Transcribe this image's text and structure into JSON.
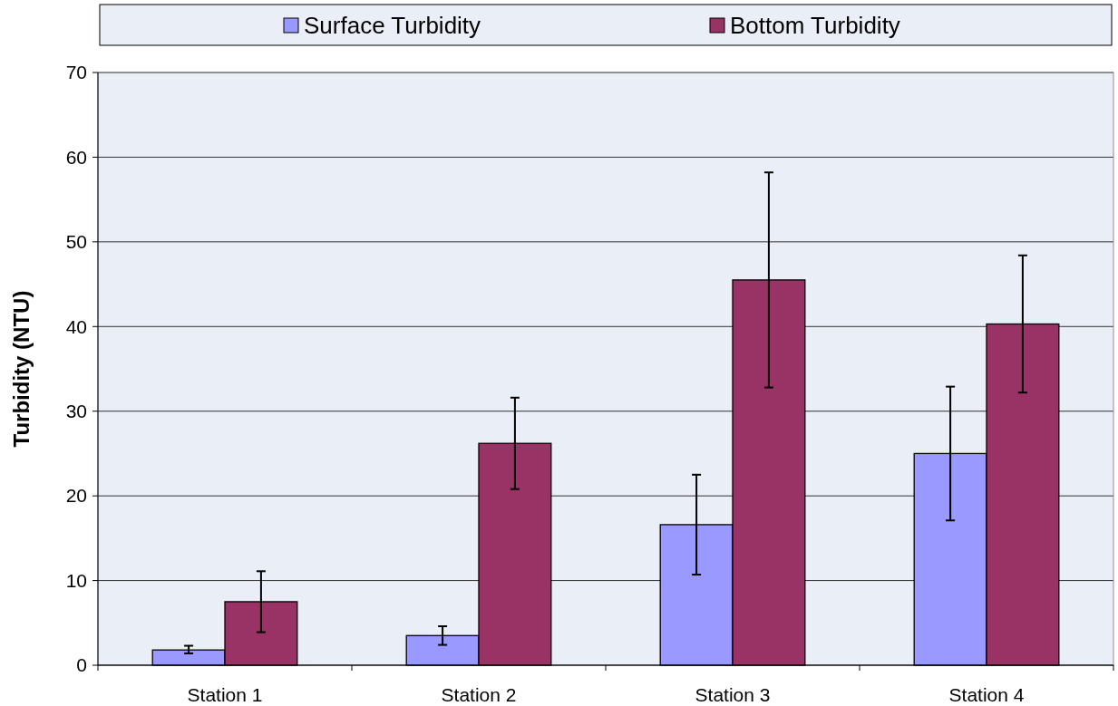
{
  "chart_data": {
    "type": "bar",
    "ylabel": "Turbidity (NTU)",
    "categories": [
      "Station 1",
      "Station 2",
      "Station 3",
      "Station 4"
    ],
    "series": [
      {
        "name": "Surface Turbidity",
        "color": "#9999ff",
        "values": [
          1.8,
          3.5,
          16.6,
          25.0
        ],
        "errors": [
          [
            1.4,
            2.3
          ],
          [
            2.4,
            4.6
          ],
          [
            10.7,
            22.5
          ],
          [
            17.1,
            32.9
          ]
        ]
      },
      {
        "name": "Bottom Turbidity",
        "color": "#993366",
        "values": [
          7.5,
          26.2,
          45.5,
          40.3
        ],
        "errors": [
          [
            3.9,
            11.1
          ],
          [
            20.8,
            31.6
          ],
          [
            32.8,
            58.2
          ],
          [
            32.2,
            48.4
          ]
        ]
      }
    ],
    "ylim": [
      0,
      70
    ],
    "yticks": [
      0,
      10,
      20,
      30,
      40,
      50,
      60,
      70
    ],
    "grid": "y",
    "legend": "top"
  }
}
